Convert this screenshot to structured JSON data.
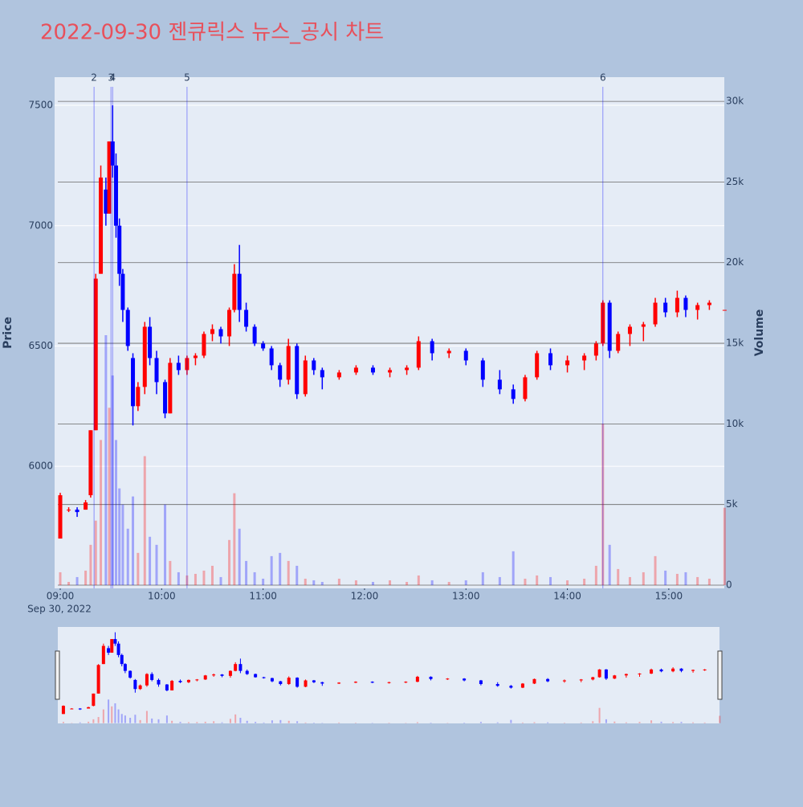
{
  "chart_data": {
    "type": "candlestick",
    "title": "2022-09-30 젠큐릭스 뉴스_공시 차트",
    "y_label": "Price",
    "y2_label": "Volume",
    "increasing_color": "#ff0000",
    "decreasing_color": "#0000ff",
    "x": [
      "2022-09-30 09:00",
      "2022-09-30 09:05",
      "2022-09-30 09:10",
      "2022-09-30 09:15",
      "2022-09-30 09:18",
      "2022-09-30 09:21",
      "2022-09-30 09:24",
      "2022-09-30 09:27",
      "2022-09-30 09:29",
      "2022-09-30 09:31",
      "2022-09-30 09:33",
      "2022-09-30 09:35",
      "2022-09-30 09:37",
      "2022-09-30 09:40",
      "2022-09-30 09:43",
      "2022-09-30 09:46",
      "2022-09-30 09:50",
      "2022-09-30 09:53",
      "2022-09-30 09:57",
      "2022-09-30 10:02",
      "2022-09-30 10:05",
      "2022-09-30 10:10",
      "2022-09-30 10:15",
      "2022-09-30 10:20",
      "2022-09-30 10:25",
      "2022-09-30 10:30",
      "2022-09-30 10:35",
      "2022-09-30 10:40",
      "2022-09-30 10:43",
      "2022-09-30 10:46",
      "2022-09-30 10:50",
      "2022-09-30 10:55",
      "2022-09-30 11:00",
      "2022-09-30 11:05",
      "2022-09-30 11:10",
      "2022-09-30 11:15",
      "2022-09-30 11:20",
      "2022-09-30 11:25",
      "2022-09-30 11:30",
      "2022-09-30 11:35",
      "2022-09-30 11:45",
      "2022-09-30 11:55",
      "2022-09-30 12:05",
      "2022-09-30 12:15",
      "2022-09-30 12:25",
      "2022-09-30 12:32",
      "2022-09-30 12:40",
      "2022-09-30 12:50",
      "2022-09-30 13:00",
      "2022-09-30 13:10",
      "2022-09-30 13:20",
      "2022-09-30 13:28",
      "2022-09-30 13:35",
      "2022-09-30 13:42",
      "2022-09-30 13:50",
      "2022-09-30 14:00",
      "2022-09-30 14:10",
      "2022-09-30 14:17",
      "2022-09-30 14:21",
      "2022-09-30 14:25",
      "2022-09-30 14:30",
      "2022-09-30 14:37",
      "2022-09-30 14:45",
      "2022-09-30 14:52",
      "2022-09-30 14:58",
      "2022-09-30 15:05",
      "2022-09-30 15:10",
      "2022-09-30 15:17",
      "2022-09-30 15:24",
      "2022-09-30 15:33"
    ],
    "open": [
      5700,
      5820,
      5820,
      5820,
      5880,
      6150,
      6800,
      7150,
      7050,
      7350,
      7250,
      7000,
      6800,
      6650,
      6450,
      6250,
      6330,
      6580,
      6450,
      6350,
      6220,
      6430,
      6400,
      6450,
      6460,
      6550,
      6570,
      6540,
      6650,
      6800,
      6650,
      6580,
      6510,
      6490,
      6420,
      6360,
      6500,
      6300,
      6440,
      6400,
      6370,
      6390,
      6410,
      6390,
      6400,
      6410,
      6520,
      6470,
      6480,
      6440,
      6360,
      6320,
      6280,
      6370,
      6470,
      6420,
      6440,
      6460,
      6510,
      6680,
      6480,
      6550,
      6580,
      6590,
      6680,
      6640,
      6700,
      6650,
      6670,
      6650
    ],
    "high": [
      5890,
      5830,
      5830,
      5860,
      6150,
      6800,
      7250,
      7200,
      7350,
      7500,
      7300,
      7030,
      6820,
      6660,
      6470,
      6350,
      6600,
      6620,
      6480,
      6360,
      6450,
      6460,
      6460,
      6470,
      6560,
      6590,
      6580,
      6660,
      6840,
      6920,
      6680,
      6590,
      6520,
      6500,
      6430,
      6530,
      6510,
      6460,
      6450,
      6410,
      6400,
      6420,
      6420,
      6410,
      6420,
      6540,
      6530,
      6490,
      6490,
      6450,
      6400,
      6340,
      6380,
      6480,
      6490,
      6460,
      6470,
      6520,
      6690,
      6690,
      6560,
      6590,
      6600,
      6700,
      6700,
      6730,
      6710,
      6680,
      6690,
      6650
    ],
    "low": [
      5700,
      5810,
      5790,
      5820,
      5870,
      6150,
      6800,
      7000,
      7050,
      7200,
      6950,
      6750,
      6600,
      6480,
      6170,
      6230,
      6300,
      6420,
      6300,
      6200,
      6220,
      6380,
      6380,
      6420,
      6450,
      6520,
      6510,
      6500,
      6640,
      6600,
      6560,
      6500,
      6480,
      6400,
      6330,
      6340,
      6280,
      6290,
      6380,
      6320,
      6360,
      6380,
      6380,
      6370,
      6380,
      6400,
      6440,
      6450,
      6420,
      6330,
      6300,
      6260,
      6270,
      6360,
      6400,
      6390,
      6400,
      6440,
      6500,
      6450,
      6470,
      6500,
      6520,
      6580,
      6620,
      6620,
      6620,
      6610,
      6650,
      6650
    ],
    "close": [
      5880,
      5820,
      5810,
      5850,
      6150,
      6780,
      7200,
      7050,
      7350,
      7250,
      7000,
      6800,
      6650,
      6500,
      6250,
      6330,
      6580,
      6450,
      6350,
      6220,
      6430,
      6400,
      6450,
      6460,
      6550,
      6570,
      6540,
      6650,
      6800,
      6650,
      6580,
      6510,
      6490,
      6420,
      6360,
      6500,
      6300,
      6440,
      6400,
      6370,
      6390,
      6410,
      6390,
      6400,
      6410,
      6520,
      6470,
      6480,
      6440,
      6360,
      6320,
      6280,
      6370,
      6470,
      6420,
      6440,
      6460,
      6510,
      6680,
      6480,
      6550,
      6580,
      6590,
      6680,
      6640,
      6700,
      6650,
      6670,
      6680,
      6650
    ],
    "volume": [
      800,
      200,
      500,
      900,
      2500,
      4000,
      9000,
      15500,
      11000,
      13000,
      9000,
      6000,
      5000,
      3500,
      5500,
      2000,
      8000,
      3000,
      2500,
      5000,
      1500,
      800,
      600,
      700,
      900,
      1200,
      500,
      2800,
      5700,
      3500,
      1500,
      800,
      400,
      1800,
      2000,
      1500,
      1200,
      400,
      300,
      200,
      400,
      300,
      200,
      300,
      200,
      600,
      300,
      200,
      300,
      800,
      500,
      2100,
      400,
      600,
      500,
      300,
      400,
      1200,
      10000,
      2500,
      1000,
      500,
      800,
      1800,
      900,
      700,
      800,
      500,
      400,
      4800
    ],
    "xlim": [
      "2022-09-30 08:56:40",
      "2022-09-30 15:32:50"
    ],
    "xticks": [
      {
        "value": "2022-09-30 09:00",
        "label": "09:00"
      },
      {
        "value": "2022-09-30 10:00",
        "label": "10:00"
      },
      {
        "value": "2022-09-30 11:00",
        "label": "11:00"
      },
      {
        "value": "2022-09-30 12:00",
        "label": "12:00"
      },
      {
        "value": "2022-09-30 13:00",
        "label": "13:00"
      },
      {
        "value": "2022-09-30 14:00",
        "label": "14:00"
      },
      {
        "value": "2022-09-30 15:00",
        "label": "15:00"
      }
    ],
    "x_date_label": "Sep 30, 2022",
    "ylim": [
      5493,
      7617
    ],
    "yticks": [
      6000,
      6500,
      7000,
      7500
    ],
    "y2lim": [
      -200,
      31500
    ],
    "y2ticks": [
      0,
      {
        "value": 5000,
        "label": "5k"
      },
      {
        "value": 10000,
        "label": "10k"
      },
      {
        "value": 15000,
        "label": "15k"
      },
      {
        "value": 20000,
        "label": "20k"
      },
      {
        "value": 25000,
        "label": "25k"
      },
      {
        "value": 30000,
        "label": "30k"
      }
    ],
    "events": [
      {
        "label": "2",
        "x": "2022-09-30 09:20"
      },
      {
        "label": "3",
        "x": "2022-09-30 09:30"
      },
      {
        "label": "4",
        "x": "2022-09-30 09:31"
      },
      {
        "label": "5",
        "x": "2022-09-30 10:15"
      },
      {
        "label": "6",
        "x": "2022-09-30 14:21"
      }
    ],
    "range_slider": true
  }
}
